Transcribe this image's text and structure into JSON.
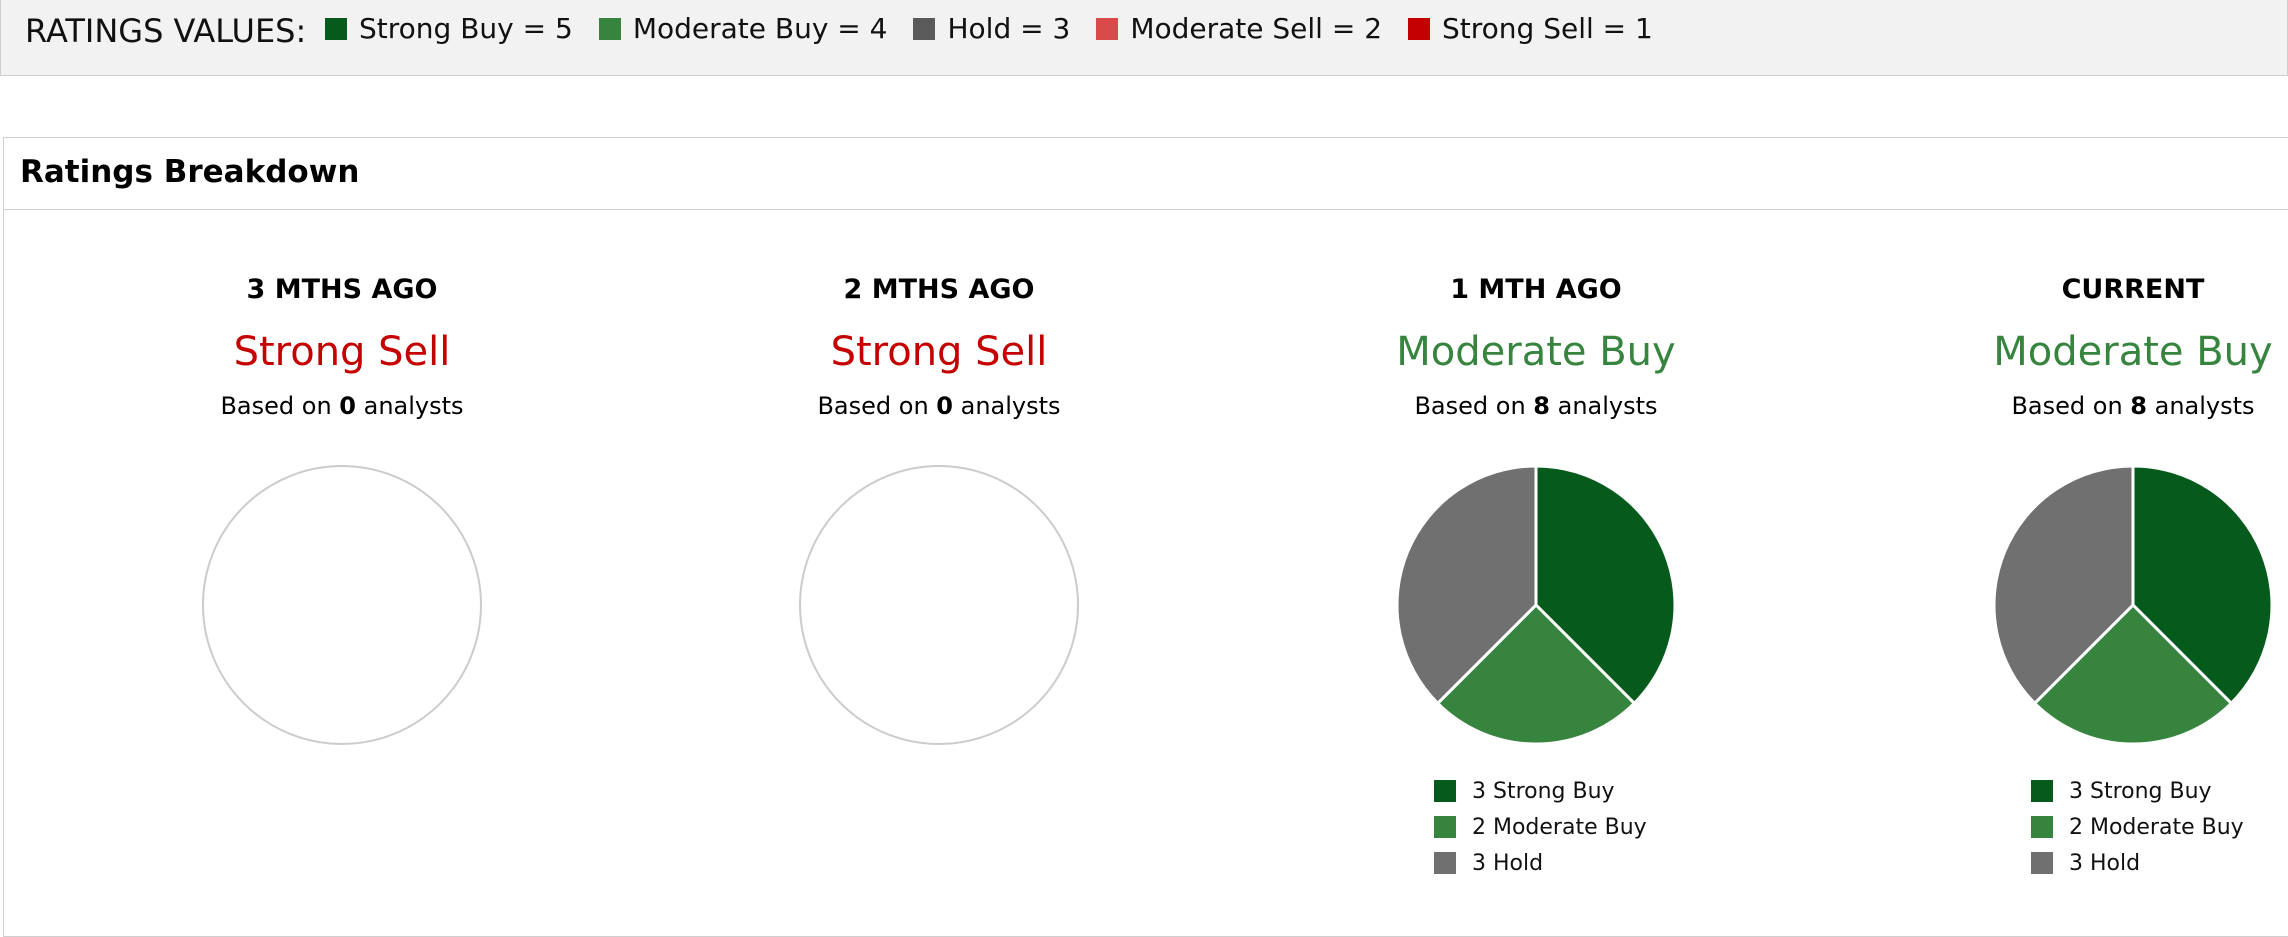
{
  "legend": {
    "title": "RATINGS VALUES:",
    "items": [
      {
        "label": "Strong Buy = 5",
        "color": "#055a1c"
      },
      {
        "label": "Moderate Buy = 4",
        "color": "#37843f"
      },
      {
        "label": "Hold = 3",
        "color": "#5a5a5a"
      },
      {
        "label": "Moderate Sell = 2",
        "color": "#d94a4a"
      },
      {
        "label": "Strong Sell = 1",
        "color": "#c40000"
      }
    ]
  },
  "panel": {
    "title": "Ratings Breakdown"
  },
  "based_prefix": "Based on ",
  "based_suffix": " analysts",
  "chart_data": [
    {
      "type": "pie",
      "title": "3 MTHS AGO",
      "rating": "Strong Sell",
      "rating_color": "#c40000",
      "analysts": "0",
      "categories": [],
      "values": []
    },
    {
      "type": "pie",
      "title": "2 MTHS AGO",
      "rating": "Strong Sell",
      "rating_color": "#c40000",
      "analysts": "0",
      "categories": [],
      "values": []
    },
    {
      "type": "pie",
      "title": "1 MTH AGO",
      "rating": "Moderate Buy",
      "rating_color": "#37843f",
      "analysts": "8",
      "categories": [
        "Strong Buy",
        "Moderate Buy",
        "Hold"
      ],
      "values": [
        3,
        2,
        3
      ],
      "colors": [
        "#055a1c",
        "#37843f",
        "#707070"
      ],
      "legend_labels": [
        "3 Strong Buy",
        "2 Moderate Buy",
        "3 Hold"
      ]
    },
    {
      "type": "pie",
      "title": "CURRENT",
      "rating": "Moderate Buy",
      "rating_color": "#37843f",
      "analysts": "8",
      "categories": [
        "Strong Buy",
        "Moderate Buy",
        "Hold"
      ],
      "values": [
        3,
        2,
        3
      ],
      "colors": [
        "#055a1c",
        "#37843f",
        "#707070"
      ],
      "legend_labels": [
        "3 Strong Buy",
        "2 Moderate Buy",
        "3 Hold"
      ]
    }
  ]
}
